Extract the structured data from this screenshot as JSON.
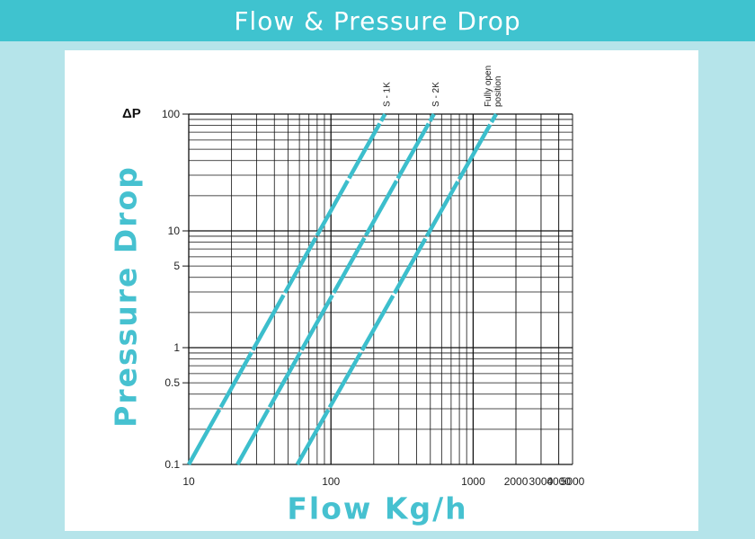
{
  "header": {
    "title": "Flow & Pressure Drop"
  },
  "chart_data": {
    "type": "line",
    "title": "Flow & Pressure Drop",
    "xlabel": "Flow Kg/h",
    "ylabel": "Pressure Drop",
    "y_unit_label": "ΔP",
    "x_scale": "log",
    "y_scale": "log",
    "xlim": [
      10,
      5000
    ],
    "ylim": [
      0.1,
      100
    ],
    "x_tick_labels": [
      "10",
      "100",
      "1000",
      "2000",
      "3000",
      "4000",
      "5000"
    ],
    "y_tick_labels": [
      "0.1",
      "0.5",
      "1",
      "5",
      "10",
      "100"
    ],
    "grid": true,
    "series": [
      {
        "name": "S - 1K",
        "color": "#3cbecc",
        "x": [
          10,
          240
        ],
        "y": [
          0.1,
          100
        ]
      },
      {
        "name": "S - 2K",
        "color": "#3cbecc",
        "x": [
          22,
          530
        ],
        "y": [
          0.1,
          100
        ]
      },
      {
        "name": "Fully open position",
        "label_lines": [
          "Fully open",
          "position"
        ],
        "color": "#3cbecc",
        "x": [
          58,
          1450
        ],
        "y": [
          0.1,
          100
        ]
      }
    ]
  }
}
